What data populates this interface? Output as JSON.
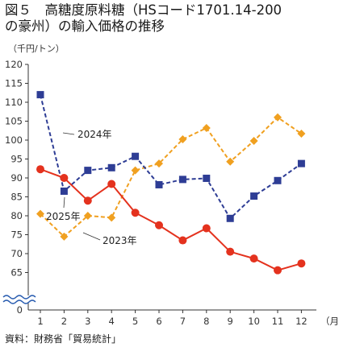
{
  "figure": {
    "title": "図５　高糖度原料糖（HSコード1701.14-200\nの豪州）の輸入価格の推移",
    "unit": "（千円/トン）",
    "source": "資料：財務省「貿易統計」"
  },
  "chart_data": {
    "type": "line",
    "x": [
      1,
      2,
      3,
      4,
      5,
      6,
      7,
      8,
      9,
      10,
      11,
      12
    ],
    "x_tick_labels": [
      "1",
      "2",
      "3",
      "4",
      "5",
      "6",
      "7",
      "8",
      "9",
      "10",
      "11",
      "12"
    ],
    "x_unit_label": "（月）",
    "ylabel": "（千円/トン）",
    "ylim": [
      60,
      120
    ],
    "y_ticks": [
      65,
      70,
      75,
      80,
      85,
      90,
      95,
      100,
      105,
      110,
      115,
      120
    ],
    "y_zero_label": "0",
    "axis_break": true,
    "grid": false,
    "series": [
      {
        "name": "2023年",
        "color": "#f0a020",
        "marker": "diamond",
        "dash": true,
        "values": [
          80.5,
          74.5,
          80,
          79.5,
          92,
          93.8,
          100.2,
          103.2,
          94.3,
          99.8,
          106,
          101.7
        ]
      },
      {
        "name": "2024年",
        "color": "#2e3d95",
        "marker": "square",
        "dash": true,
        "values": [
          112,
          86.5,
          92,
          92.7,
          95.7,
          88.2,
          89.6,
          89.9,
          79.3,
          85.2,
          89.3,
          93.8
        ]
      },
      {
        "name": "2025年",
        "color": "#e4321e",
        "marker": "circle",
        "dash": false,
        "values": [
          92.3,
          90,
          84,
          88.4,
          80.8,
          77.5,
          73.5,
          76.7,
          70.5,
          68.7,
          65.6,
          67.4
        ]
      }
    ]
  }
}
